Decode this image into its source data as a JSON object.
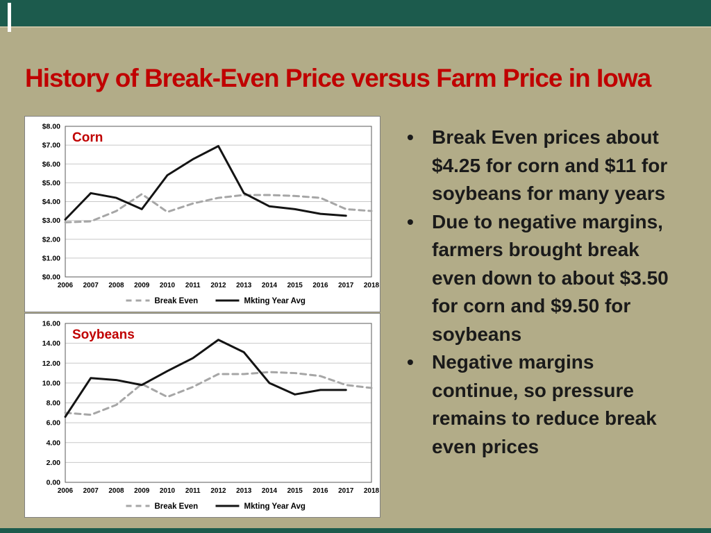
{
  "slide": {
    "title": "History of Break-Even Price versus Farm Price in Iowa",
    "title_color": "#c00000",
    "background_color": "#b2ac88",
    "band_color": "#1c5b4d"
  },
  "bullets": [
    "Break Even prices about $4.25 for corn and $11 for soybeans for many years",
    "Due to negative margins, farmers brought break even down to about $3.50 for corn and $9.50 for soybeans",
    "Negative margins continue, so pressure remains to reduce break even prices"
  ],
  "chart_data": [
    {
      "type": "line",
      "label": "Corn",
      "label_color": "#c00000",
      "y_ticks": [
        "$8.00",
        "$7.00",
        "$6.00",
        "$5.00",
        "$4.00",
        "$3.00",
        "$2.00",
        "$1.00",
        "$0.00"
      ],
      "ymin": 0,
      "ymax": 8,
      "years": [
        "2006",
        "2007",
        "2008",
        "2009",
        "2010",
        "2011",
        "2012",
        "2013",
        "2014",
        "2015",
        "2016",
        "2017",
        "2018"
      ],
      "grid": true,
      "legend_position": "bottom",
      "series": [
        {
          "name": "Break Even",
          "color": "#a6a6a6",
          "dash": "8 6",
          "width": 3,
          "values": [
            2.9,
            2.95,
            3.5,
            4.4,
            3.45,
            3.9,
            4.2,
            4.35,
            4.35,
            4.3,
            4.2,
            3.6,
            3.5
          ]
        },
        {
          "name": "Mkting Year Avg",
          "color": "#141414",
          "dash": null,
          "width": 3,
          "values": [
            3.05,
            4.45,
            4.2,
            3.6,
            5.4,
            6.25,
            6.95,
            4.45,
            3.75,
            3.6,
            3.35,
            3.25
          ]
        }
      ]
    },
    {
      "type": "line",
      "label": "Soybeans",
      "label_color": "#c00000",
      "y_ticks": [
        "16.00",
        "14.00",
        "12.00",
        "10.00",
        "8.00",
        "6.00",
        "4.00",
        "2.00",
        "0.00"
      ],
      "ymin": 0,
      "ymax": 16,
      "years": [
        "2006",
        "2007",
        "2008",
        "2009",
        "2010",
        "2011",
        "2012",
        "2013",
        "2014",
        "2015",
        "2016",
        "2017",
        "2018"
      ],
      "grid": true,
      "legend_position": "bottom",
      "series": [
        {
          "name": "Break Even",
          "color": "#a6a6a6",
          "dash": "8 6",
          "width": 3,
          "values": [
            7.0,
            6.8,
            7.8,
            9.9,
            8.6,
            9.6,
            10.9,
            10.9,
            11.1,
            11.0,
            10.7,
            9.8,
            9.5
          ]
        },
        {
          "name": "Mkting Year Avg",
          "color": "#141414",
          "dash": null,
          "width": 3,
          "values": [
            6.6,
            10.5,
            10.3,
            9.8,
            11.2,
            12.5,
            14.35,
            13.1,
            10.0,
            8.85,
            9.3,
            9.3
          ]
        }
      ]
    }
  ]
}
